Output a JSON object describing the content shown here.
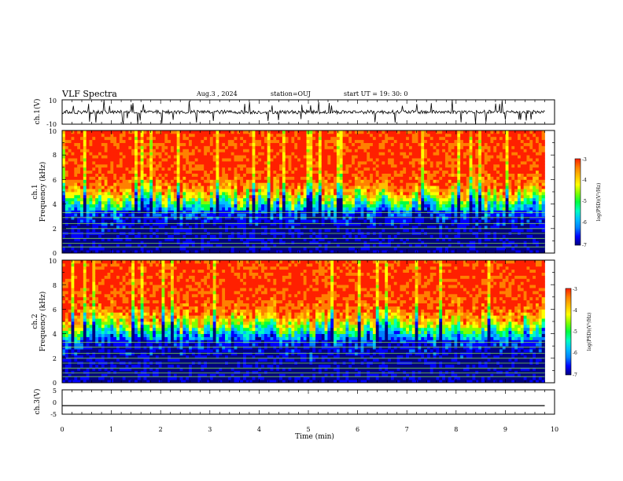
{
  "header": {
    "title": "VLF Spectra",
    "date": "Aug.3 , 2024",
    "station": "station=OUJ",
    "start_ut": "start UT = 19: 30: 0"
  },
  "chart_data": {
    "type": "heatmap",
    "x_axis": {
      "label": "Time (min)",
      "range": [
        0,
        10
      ],
      "ticks": [
        "0",
        "1",
        "2",
        "3",
        "4",
        "5",
        "6",
        "7",
        "8",
        "9",
        "10"
      ]
    },
    "panels": [
      {
        "name": "ch1-waveform",
        "kind": "waveform",
        "ylabel": "ch.1(V)",
        "ylim": [
          -10,
          10
        ],
        "y_ticks": [
          "10",
          "-10"
        ],
        "baseline": 0
      },
      {
        "name": "ch1-spectrogram",
        "kind": "spectrogram",
        "ylabel_top": "ch.1",
        "ylabel": "Frequency (kHz)",
        "ylim": [
          0,
          10
        ],
        "y_ticks": [
          "0",
          "2",
          "4",
          "6",
          "8",
          "10"
        ],
        "colorbar": {
          "label": "log(PSD)(V²/Hz)",
          "range": [
            -7,
            -3
          ],
          "ticks": [
            "-3",
            "-4",
            "-5",
            "-6",
            "-7"
          ]
        }
      },
      {
        "name": "ch2-spectrogram",
        "kind": "spectrogram",
        "ylabel_top": "ch.2",
        "ylabel": "Frequency (kHz)",
        "ylim": [
          0,
          10
        ],
        "y_ticks": [
          "0",
          "2",
          "4",
          "6",
          "8",
          "10"
        ],
        "colorbar": {
          "label": "log(PSD)(V²/Hz)",
          "range": [
            -7,
            -3
          ],
          "ticks": [
            "-3",
            "-4",
            "-5",
            "-6",
            "-7"
          ]
        }
      },
      {
        "name": "ch3-waveform",
        "kind": "waveform",
        "ylabel": "ch.3(V)",
        "ylim": [
          -5,
          5
        ],
        "y_ticks": [
          "5",
          "0",
          "-5"
        ],
        "baseline": -1.5
      }
    ],
    "data_end_min": 9.8,
    "tone_lines_khz": [
      0.5,
      0.8,
      1.2,
      1.6,
      2.0,
      2.4,
      2.9,
      3.3
    ]
  },
  "colors": {
    "colormap": [
      "#000080",
      "#0000ff",
      "#0080ff",
      "#00c0ff",
      "#00ffc0",
      "#00ff40",
      "#80ff00",
      "#ffff00",
      "#ffc000",
      "#ff8000",
      "#ff2000"
    ]
  }
}
